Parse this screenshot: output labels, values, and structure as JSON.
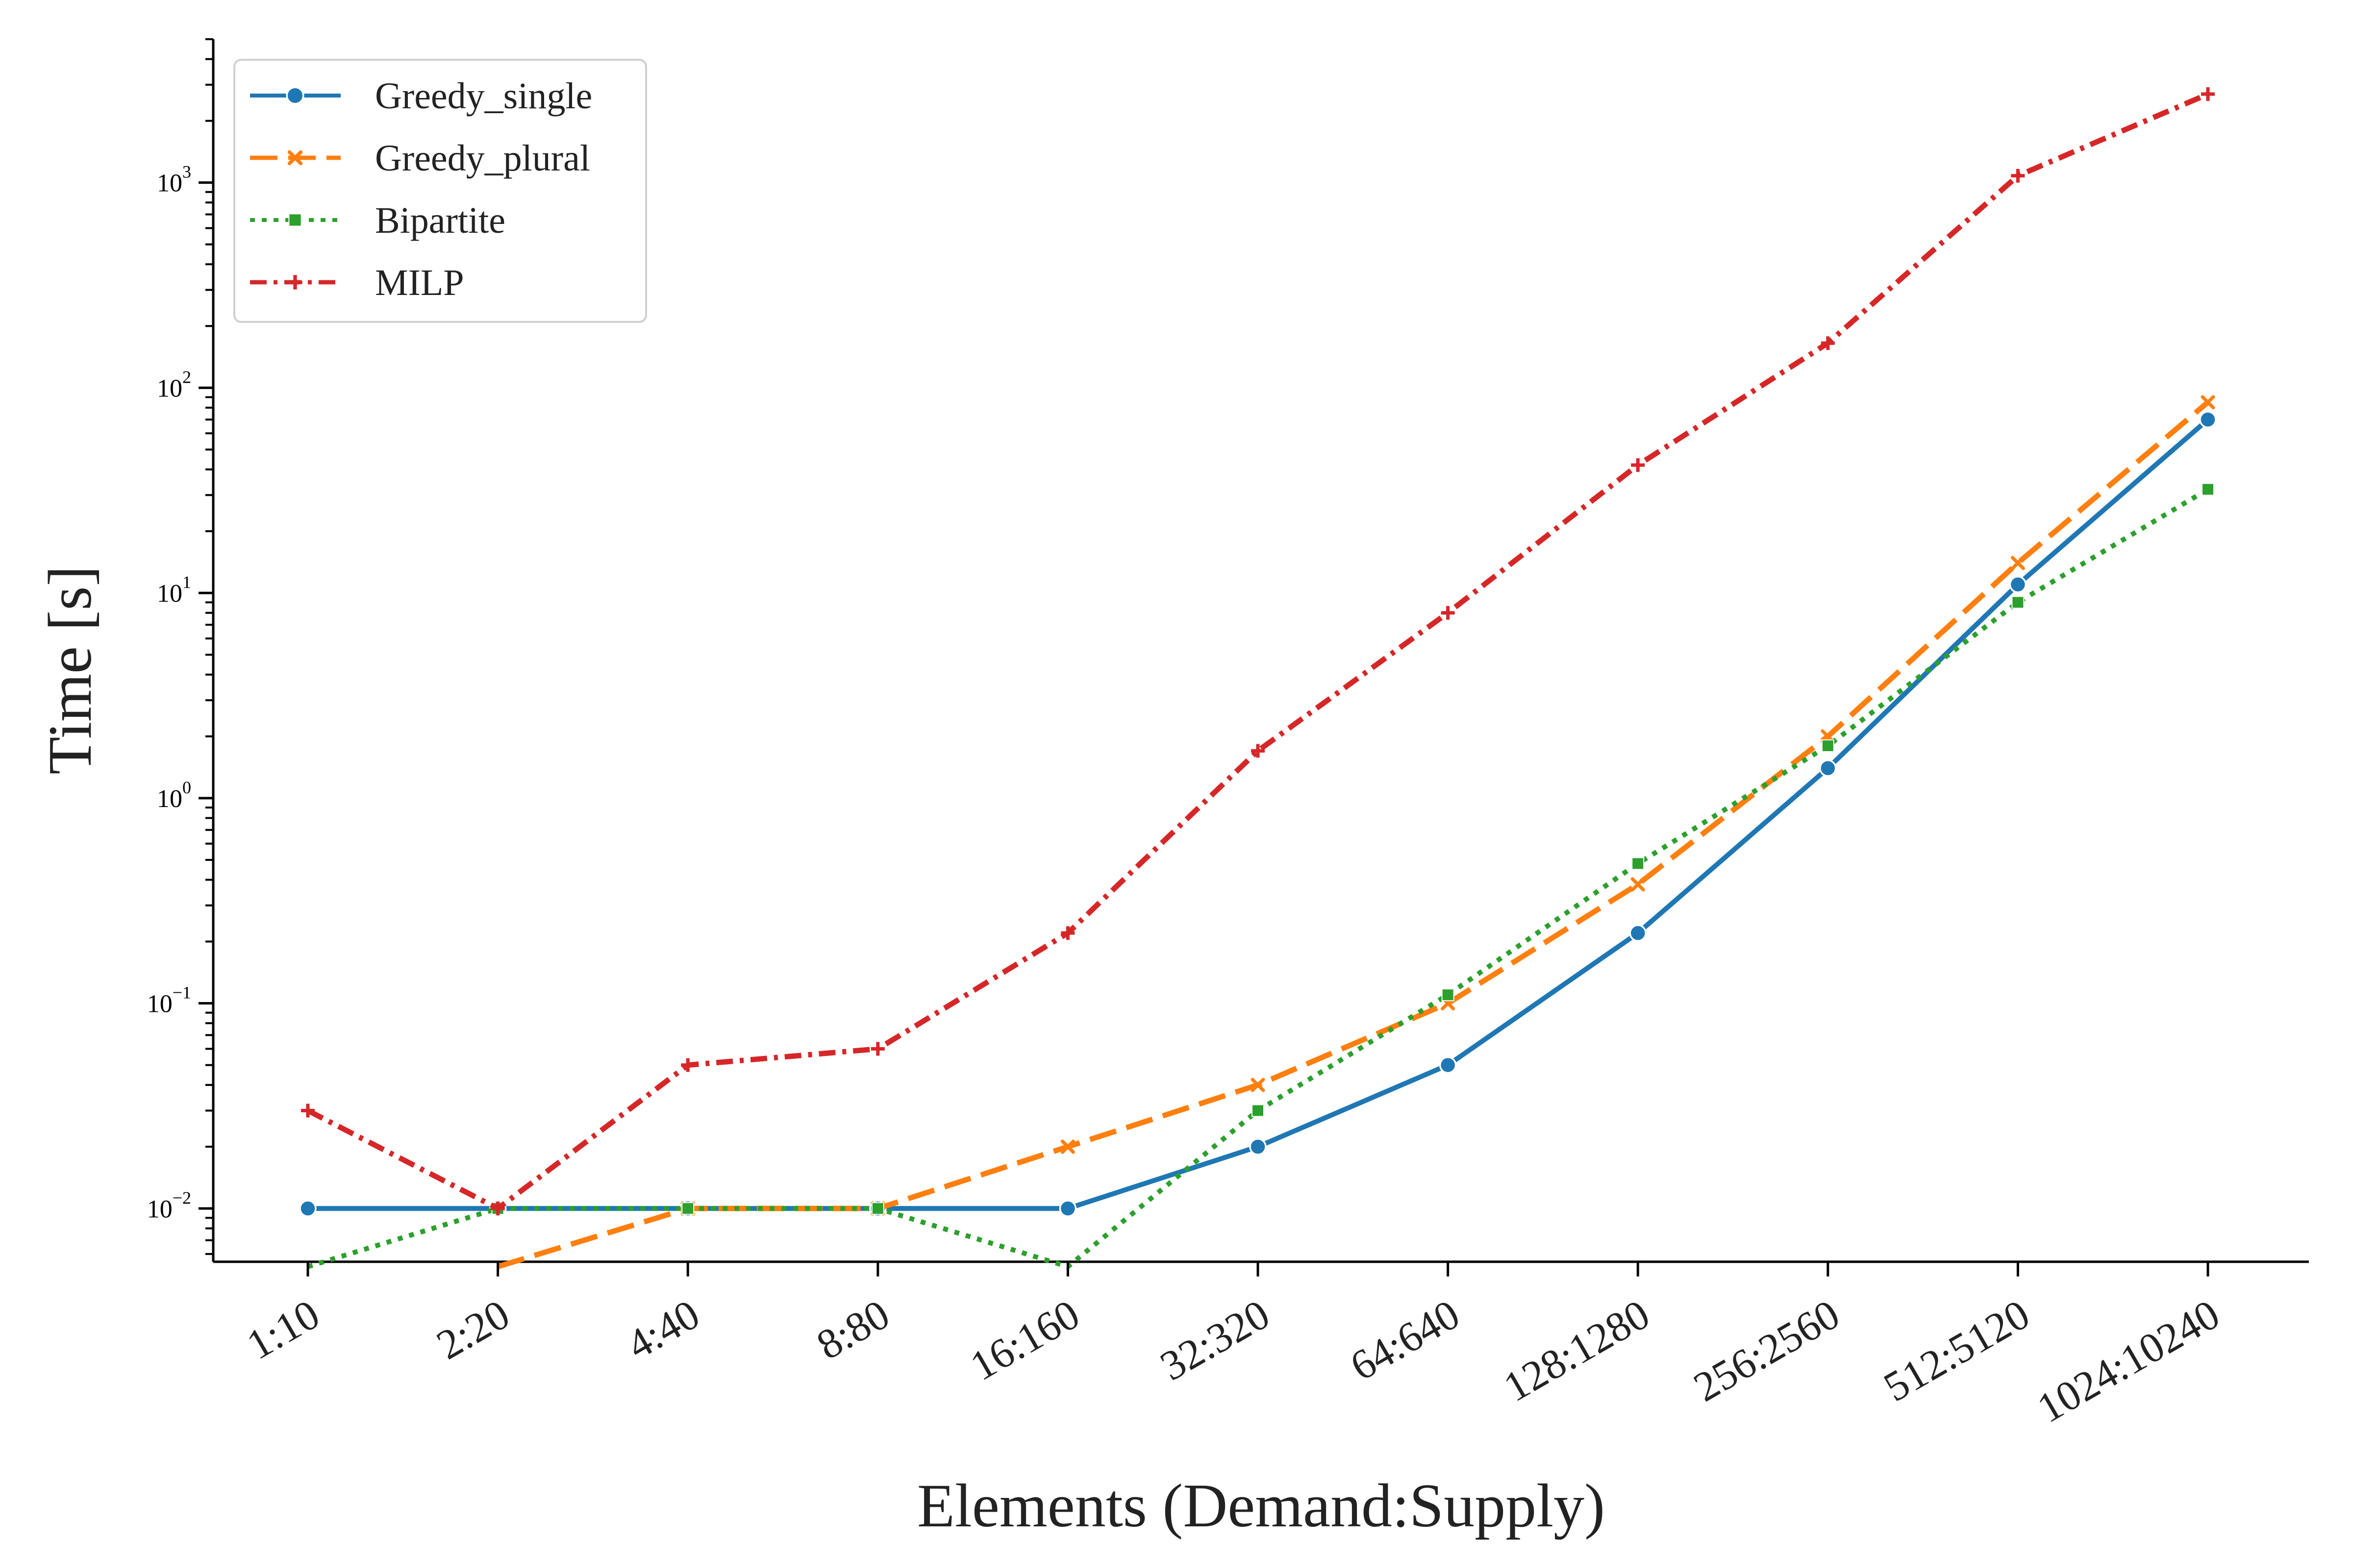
{
  "chart_data": {
    "type": "line",
    "title": "",
    "xlabel": "Elements (Demand:Supply)",
    "ylabel": "Time [s]",
    "yscale": "log",
    "ylim": [
      0.0055,
      5000
    ],
    "y_ticks": [
      {
        "base": "10",
        "exp": "−2"
      },
      {
        "base": "10",
        "exp": "−1"
      },
      {
        "base": "10",
        "exp": "0"
      },
      {
        "base": "10",
        "exp": "1"
      },
      {
        "base": "10",
        "exp": "2"
      },
      {
        "base": "10",
        "exp": "3"
      }
    ],
    "categories": [
      "1:10",
      "2:20",
      "4:40",
      "8:80",
      "16:160",
      "32:320",
      "64:640",
      "128:1280",
      "256:2560",
      "512:5120",
      "1024:10240"
    ],
    "grid": false,
    "legend_position": "top-left",
    "series": [
      {
        "name": "Greedy_single",
        "color": "#1f77b4",
        "style": "solid",
        "marker": "circle",
        "values": [
          0.01,
          0.01,
          0.01,
          0.01,
          0.01,
          0.02,
          0.05,
          0.22,
          1.4,
          11,
          70
        ]
      },
      {
        "name": "Greedy_plural",
        "color": "#ff7f0e",
        "style": "dashed",
        "marker": "x",
        "values": [
          null,
          0,
          0.01,
          0.01,
          0.02,
          0.04,
          0.1,
          0.38,
          2.0,
          14,
          85
        ]
      },
      {
        "name": "Bipartite",
        "color": "#2ca02c",
        "style": "dotted",
        "marker": "square",
        "values": [
          0,
          0.01,
          0.01,
          0.01,
          0,
          0.03,
          0.11,
          0.48,
          1.8,
          9.0,
          32
        ]
      },
      {
        "name": "MILP",
        "color": "#d62728",
        "style": "dashdot",
        "marker": "plus",
        "values": [
          0.03,
          0.01,
          0.05,
          0.06,
          0.22,
          1.7,
          8.0,
          42,
          165,
          1080,
          2700
        ]
      }
    ]
  }
}
